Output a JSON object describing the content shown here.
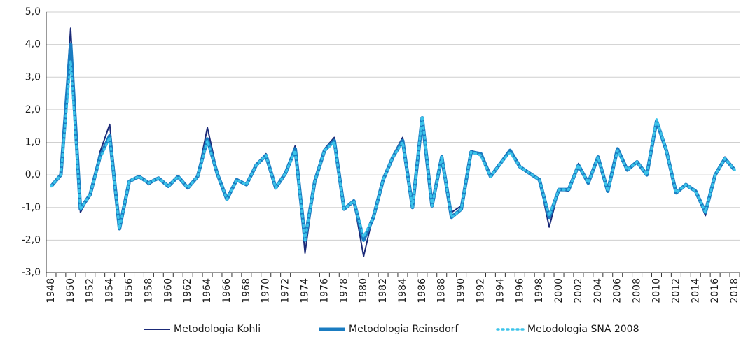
{
  "chart_data": {
    "type": "line",
    "x": [
      1948,
      1949,
      1950,
      1951,
      1952,
      1953,
      1954,
      1955,
      1956,
      1957,
      1958,
      1959,
      1960,
      1961,
      1962,
      1963,
      1964,
      1965,
      1966,
      1967,
      1968,
      1969,
      1970,
      1971,
      1972,
      1973,
      1974,
      1975,
      1976,
      1977,
      1978,
      1979,
      1980,
      1981,
      1982,
      1983,
      1984,
      1985,
      1986,
      1987,
      1988,
      1989,
      1990,
      1991,
      1992,
      1993,
      1994,
      1995,
      1996,
      1997,
      1998,
      1999,
      2000,
      2001,
      2002,
      2003,
      2004,
      2005,
      2006,
      2007,
      2008,
      2009,
      2010,
      2011,
      2012,
      2013,
      2014,
      2015,
      2016,
      2017,
      2018
    ],
    "xlim": [
      1947.5,
      2018.5
    ],
    "xticks": [
      1948,
      1950,
      1952,
      1954,
      1956,
      1958,
      1960,
      1962,
      1964,
      1966,
      1968,
      1970,
      1972,
      1974,
      1976,
      1978,
      1980,
      1982,
      1984,
      1986,
      1988,
      1990,
      1992,
      1994,
      1996,
      1998,
      2000,
      2002,
      2004,
      2006,
      2008,
      2010,
      2012,
      2014,
      2016,
      2018
    ],
    "ylim": [
      -3,
      5
    ],
    "yticks": [
      {
        "value": -3,
        "label": "-3,0"
      },
      {
        "value": -2,
        "label": "-2,0"
      },
      {
        "value": -1,
        "label": "-1,0"
      },
      {
        "value": 0,
        "label": "0,0"
      },
      {
        "value": 1,
        "label": "1,0"
      },
      {
        "value": 2,
        "label": "2,0"
      },
      {
        "value": 3,
        "label": "3,0"
      },
      {
        "value": 4,
        "label": "4,0"
      },
      {
        "value": 5,
        "label": "5,0"
      }
    ],
    "grid": true,
    "legend": "bottom",
    "series": [
      {
        "name": "Metodologia Kohli",
        "color": "#1b2a78",
        "style": "thin",
        "values": [
          -0.35,
          0.0,
          4.5,
          -1.15,
          -0.6,
          0.7,
          1.55,
          -1.5,
          -0.2,
          -0.05,
          -0.3,
          -0.1,
          -0.35,
          -0.05,
          -0.4,
          -0.05,
          1.45,
          0.1,
          -0.7,
          -0.15,
          -0.3,
          0.3,
          0.65,
          -0.4,
          0.05,
          0.9,
          -2.4,
          -0.2,
          0.8,
          1.15,
          -1.0,
          -0.8,
          -2.5,
          -1.2,
          -0.15,
          0.6,
          1.15,
          -0.9,
          1.7,
          -0.9,
          0.6,
          -1.15,
          -0.95,
          0.75,
          0.65,
          0.0,
          0.35,
          0.75,
          0.25,
          0.05,
          -0.15,
          -1.6,
          -0.45,
          -0.5,
          0.35,
          -0.25,
          0.5,
          -0.45,
          0.8,
          0.15,
          0.4,
          0.05,
          1.6,
          0.75,
          -0.55,
          -0.3,
          -0.5,
          -1.25,
          0.0,
          0.55,
          0.15
        ]
      },
      {
        "name": "Metodologia Reinsdorf",
        "color": "#1a7cc1",
        "style": "thick",
        "values": [
          -0.35,
          0.0,
          4.0,
          -1.05,
          -0.6,
          0.55,
          1.2,
          -1.65,
          -0.2,
          -0.05,
          -0.25,
          -0.1,
          -0.35,
          -0.05,
          -0.4,
          -0.05,
          1.1,
          0.05,
          -0.75,
          -0.15,
          -0.3,
          0.3,
          0.6,
          -0.4,
          0.05,
          0.8,
          -2.0,
          -0.2,
          0.75,
          1.05,
          -1.05,
          -0.8,
          -2.0,
          -1.3,
          -0.15,
          0.55,
          1.05,
          -1.0,
          1.75,
          -0.95,
          0.55,
          -1.3,
          -1.05,
          0.7,
          0.65,
          -0.05,
          0.35,
          0.75,
          0.25,
          0.05,
          -0.15,
          -1.3,
          -0.45,
          -0.45,
          0.3,
          -0.25,
          0.55,
          -0.5,
          0.8,
          0.15,
          0.4,
          0.0,
          1.65,
          0.75,
          -0.55,
          -0.3,
          -0.5,
          -1.15,
          0.0,
          0.5,
          0.15
        ]
      },
      {
        "name": "Metodologia SNA 2008",
        "color": "#3cc4ea",
        "style": "dotted",
        "values": [
          -0.35,
          0.0,
          3.5,
          -1.05,
          -0.6,
          0.5,
          1.15,
          -1.65,
          -0.2,
          -0.05,
          -0.25,
          -0.1,
          -0.35,
          -0.05,
          -0.4,
          -0.05,
          1.05,
          0.05,
          -0.75,
          -0.15,
          -0.3,
          0.3,
          0.6,
          -0.4,
          0.05,
          0.75,
          -2.0,
          -0.2,
          0.75,
          1.0,
          -1.05,
          -0.8,
          -1.9,
          -1.3,
          -0.15,
          0.55,
          1.0,
          -1.0,
          1.8,
          -0.95,
          0.55,
          -1.3,
          -1.05,
          0.7,
          0.6,
          -0.05,
          0.35,
          0.7,
          0.25,
          0.05,
          -0.15,
          -1.25,
          -0.45,
          -0.45,
          0.3,
          -0.25,
          0.55,
          -0.5,
          0.75,
          0.15,
          0.4,
          0.0,
          1.7,
          0.75,
          -0.55,
          -0.3,
          -0.5,
          -1.15,
          0.0,
          0.5,
          0.15
        ]
      }
    ]
  }
}
